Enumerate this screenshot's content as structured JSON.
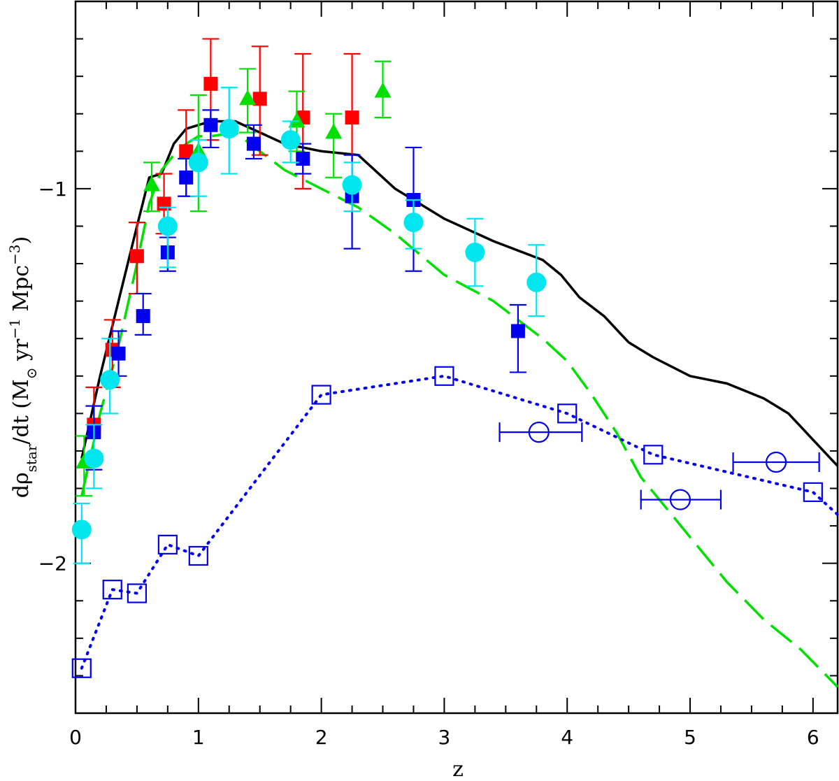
{
  "chart_data": {
    "type": "scatter",
    "xlabel": "z",
    "ylabel_parts": [
      "dρ",
      "star",
      "/dt  (M",
      "⊙",
      " yr",
      "−1",
      " Mpc",
      "−3",
      ")"
    ],
    "xlim": [
      0,
      6.2
    ],
    "ylim": [
      -2.4,
      -0.5
    ],
    "x_ticks": [
      "0",
      "1",
      "2",
      "3",
      "4",
      "5",
      "6"
    ],
    "y_ticks": [
      {
        "value": -1,
        "label": "−1"
      },
      {
        "value": -2,
        "label": "−2"
      }
    ],
    "grid": false,
    "colors": {
      "axes": "#000000",
      "black_model": "#000000",
      "green": "#00e000",
      "red": "#ff0000",
      "blue": "#0000ee",
      "cyan": "#00e5ee",
      "dotted_blue": "#0000ee"
    },
    "lines": [
      {
        "id": "black-model",
        "style": "solid",
        "color_key": "black_model",
        "x": [
          0.05,
          0.2,
          0.35,
          0.5,
          0.6,
          0.7,
          0.8,
          0.9,
          1.0,
          1.1,
          1.3,
          1.5,
          1.7,
          2.0,
          2.3,
          2.6,
          3.0,
          3.4,
          3.8,
          3.95,
          4.1,
          4.3,
          4.5,
          4.7,
          5.0,
          5.3,
          5.6,
          5.8,
          6.0,
          6.2
        ],
        "y": [
          -1.72,
          -1.5,
          -1.3,
          -1.1,
          -0.97,
          -0.96,
          -0.88,
          -0.84,
          -0.83,
          -0.82,
          -0.82,
          -0.85,
          -0.88,
          -0.9,
          -0.91,
          -1.0,
          -1.08,
          -1.14,
          -1.19,
          -1.23,
          -1.29,
          -1.34,
          -1.41,
          -1.45,
          -1.5,
          -1.52,
          -1.56,
          -1.6,
          -1.67,
          -1.74
        ]
      },
      {
        "id": "green-dashed-model",
        "style": "dashed",
        "color_key": "green",
        "x": [
          0.05,
          0.2,
          0.35,
          0.5,
          0.6,
          0.7,
          0.8,
          0.9,
          1.0,
          1.1,
          1.3,
          1.5,
          1.7,
          2.0,
          2.3,
          2.6,
          3.0,
          3.4,
          3.8,
          4.0,
          4.2,
          4.4,
          4.6,
          4.8,
          5.0,
          5.3,
          5.6,
          5.9,
          6.2
        ],
        "y": [
          -1.82,
          -1.6,
          -1.42,
          -1.2,
          -1.04,
          -0.95,
          -0.91,
          -0.88,
          -0.86,
          -0.86,
          -0.85,
          -0.9,
          -0.95,
          -1.0,
          -1.05,
          -1.12,
          -1.23,
          -1.3,
          -1.4,
          -1.46,
          -1.55,
          -1.65,
          -1.77,
          -1.85,
          -1.93,
          -2.05,
          -2.15,
          -2.23,
          -2.33
        ]
      },
      {
        "id": "blue-dotted-model",
        "style": "dotted",
        "color_key": "dotted_blue",
        "x": [
          0.05,
          0.3,
          0.5,
          0.75,
          1.0,
          2.0,
          3.0,
          4.0,
          4.7,
          6.0,
          6.2
        ],
        "y": [
          -2.28,
          -2.07,
          -2.08,
          -1.95,
          -1.98,
          -1.55,
          -1.5,
          -1.6,
          -1.71,
          -1.81,
          -1.87
        ]
      }
    ],
    "series": [
      {
        "id": "red-squares",
        "marker": "filled-square",
        "color_key": "red",
        "points": [
          {
            "x": 0.5,
            "y": -1.18,
            "ylo": -1.28,
            "yhi": -1.09
          },
          {
            "x": 0.72,
            "y": -1.04,
            "ylo": -1.12,
            "yhi": -0.96
          },
          {
            "x": 0.9,
            "y": -0.9,
            "ylo": -1.02,
            "yhi": -0.79
          },
          {
            "x": 1.1,
            "y": -0.72,
            "ylo": -0.87,
            "yhi": -0.6
          },
          {
            "x": 1.5,
            "y": -0.76,
            "ylo": -0.91,
            "yhi": -0.62
          },
          {
            "x": 1.85,
            "y": -0.81,
            "ylo": -1.0,
            "yhi": -0.64
          },
          {
            "x": 2.25,
            "y": -0.81,
            "ylo": -1.0,
            "yhi": -0.64
          },
          {
            "x": 0.3,
            "y": -1.43,
            "ylo": -1.53,
            "yhi": -1.35
          },
          {
            "x": 0.15,
            "y": -1.63,
            "ylo": -1.72,
            "yhi": -1.53
          }
        ]
      },
      {
        "id": "green-triangles",
        "marker": "filled-triangle",
        "color_key": "green",
        "points": [
          {
            "x": 0.07,
            "y": -1.73,
            "ylo": -1.82,
            "yhi": -1.66
          },
          {
            "x": 0.62,
            "y": -0.99,
            "ylo": -1.06,
            "yhi": -0.93
          },
          {
            "x": 1.0,
            "y": -0.9,
            "ylo": -1.06,
            "yhi": -0.75
          },
          {
            "x": 1.4,
            "y": -0.76,
            "ylo": -0.85,
            "yhi": -0.68
          },
          {
            "x": 1.8,
            "y": -0.82,
            "ylo": -0.9,
            "yhi": -0.74
          },
          {
            "x": 2.1,
            "y": -0.85,
            "ylo": -0.97,
            "yhi": -0.8
          },
          {
            "x": 2.5,
            "y": -0.74,
            "ylo": -0.81,
            "yhi": -0.66
          }
        ]
      },
      {
        "id": "blue-squares",
        "marker": "filled-square",
        "color_key": "blue",
        "points": [
          {
            "x": 0.15,
            "y": -1.65,
            "ylo": -1.75,
            "yhi": -1.58
          },
          {
            "x": 0.35,
            "y": -1.44,
            "ylo": -1.5,
            "yhi": -1.38
          },
          {
            "x": 0.55,
            "y": -1.34,
            "ylo": -1.39,
            "yhi": -1.28
          },
          {
            "x": 0.75,
            "y": -1.17,
            "ylo": -1.22,
            "yhi": -1.13
          },
          {
            "x": 0.9,
            "y": -0.97,
            "ylo": -1.02,
            "yhi": -0.92
          },
          {
            "x": 1.1,
            "y": -0.83,
            "ylo": -0.89,
            "yhi": -0.79
          },
          {
            "x": 1.45,
            "y": -0.88,
            "ylo": -0.92,
            "yhi": -0.83
          },
          {
            "x": 1.85,
            "y": -0.92,
            "ylo": -0.96,
            "yhi": -0.88
          },
          {
            "x": 2.25,
            "y": -1.02,
            "ylo": -1.16,
            "yhi": -0.91
          },
          {
            "x": 2.75,
            "y": -1.03,
            "ylo": -1.22,
            "yhi": -0.89
          },
          {
            "x": 3.6,
            "y": -1.38,
            "ylo": -1.49,
            "yhi": -1.31
          }
        ]
      },
      {
        "id": "cyan-circles",
        "marker": "filled-circle",
        "color_key": "cyan",
        "points": [
          {
            "x": 0.05,
            "y": -1.91,
            "ylo": -2.0,
            "yhi": -1.84
          },
          {
            "x": 0.15,
            "y": -1.72,
            "ylo": -1.8,
            "yhi": -1.63
          },
          {
            "x": 0.28,
            "y": -1.51,
            "ylo": -1.6,
            "yhi": -1.4
          },
          {
            "x": 0.75,
            "y": -1.1,
            "ylo": -1.21,
            "yhi": -1.05
          },
          {
            "x": 1.0,
            "y": -0.93,
            "ylo": -1.02,
            "yhi": -0.87
          },
          {
            "x": 1.25,
            "y": -0.84,
            "ylo": -0.96,
            "yhi": -0.73
          },
          {
            "x": 1.75,
            "y": -0.87,
            "ylo": -0.93,
            "yhi": -0.82
          },
          {
            "x": 2.25,
            "y": -0.99,
            "ylo": -1.06,
            "yhi": -0.93
          },
          {
            "x": 2.75,
            "y": -1.09,
            "ylo": -1.16,
            "yhi": -1.03
          },
          {
            "x": 3.25,
            "y": -1.17,
            "ylo": -1.26,
            "yhi": -1.08
          },
          {
            "x": 3.75,
            "y": -1.25,
            "ylo": -1.34,
            "yhi": -1.15
          }
        ]
      },
      {
        "id": "blue-open-squares",
        "marker": "open-square",
        "color_key": "dotted_blue",
        "points": [
          {
            "x": 0.05,
            "y": -2.28
          },
          {
            "x": 0.3,
            "y": -2.07
          },
          {
            "x": 0.5,
            "y": -2.08
          },
          {
            "x": 0.75,
            "y": -1.95
          },
          {
            "x": 1.0,
            "y": -1.98
          },
          {
            "x": 2.0,
            "y": -1.55
          },
          {
            "x": 3.0,
            "y": -1.5
          },
          {
            "x": 4.0,
            "y": -1.6
          },
          {
            "x": 4.7,
            "y": -1.71
          },
          {
            "x": 6.0,
            "y": -1.81
          }
        ]
      },
      {
        "id": "blue-open-circles",
        "marker": "open-circle",
        "color_key": "dotted_blue",
        "points": [
          {
            "x": 3.77,
            "y": -1.65,
            "xlo": 3.45,
            "xhi": 4.12
          },
          {
            "x": 4.92,
            "y": -1.83,
            "xlo": 4.6,
            "xhi": 5.25
          },
          {
            "x": 5.7,
            "y": -1.73,
            "xlo": 5.35,
            "xhi": 6.05
          }
        ]
      }
    ]
  }
}
